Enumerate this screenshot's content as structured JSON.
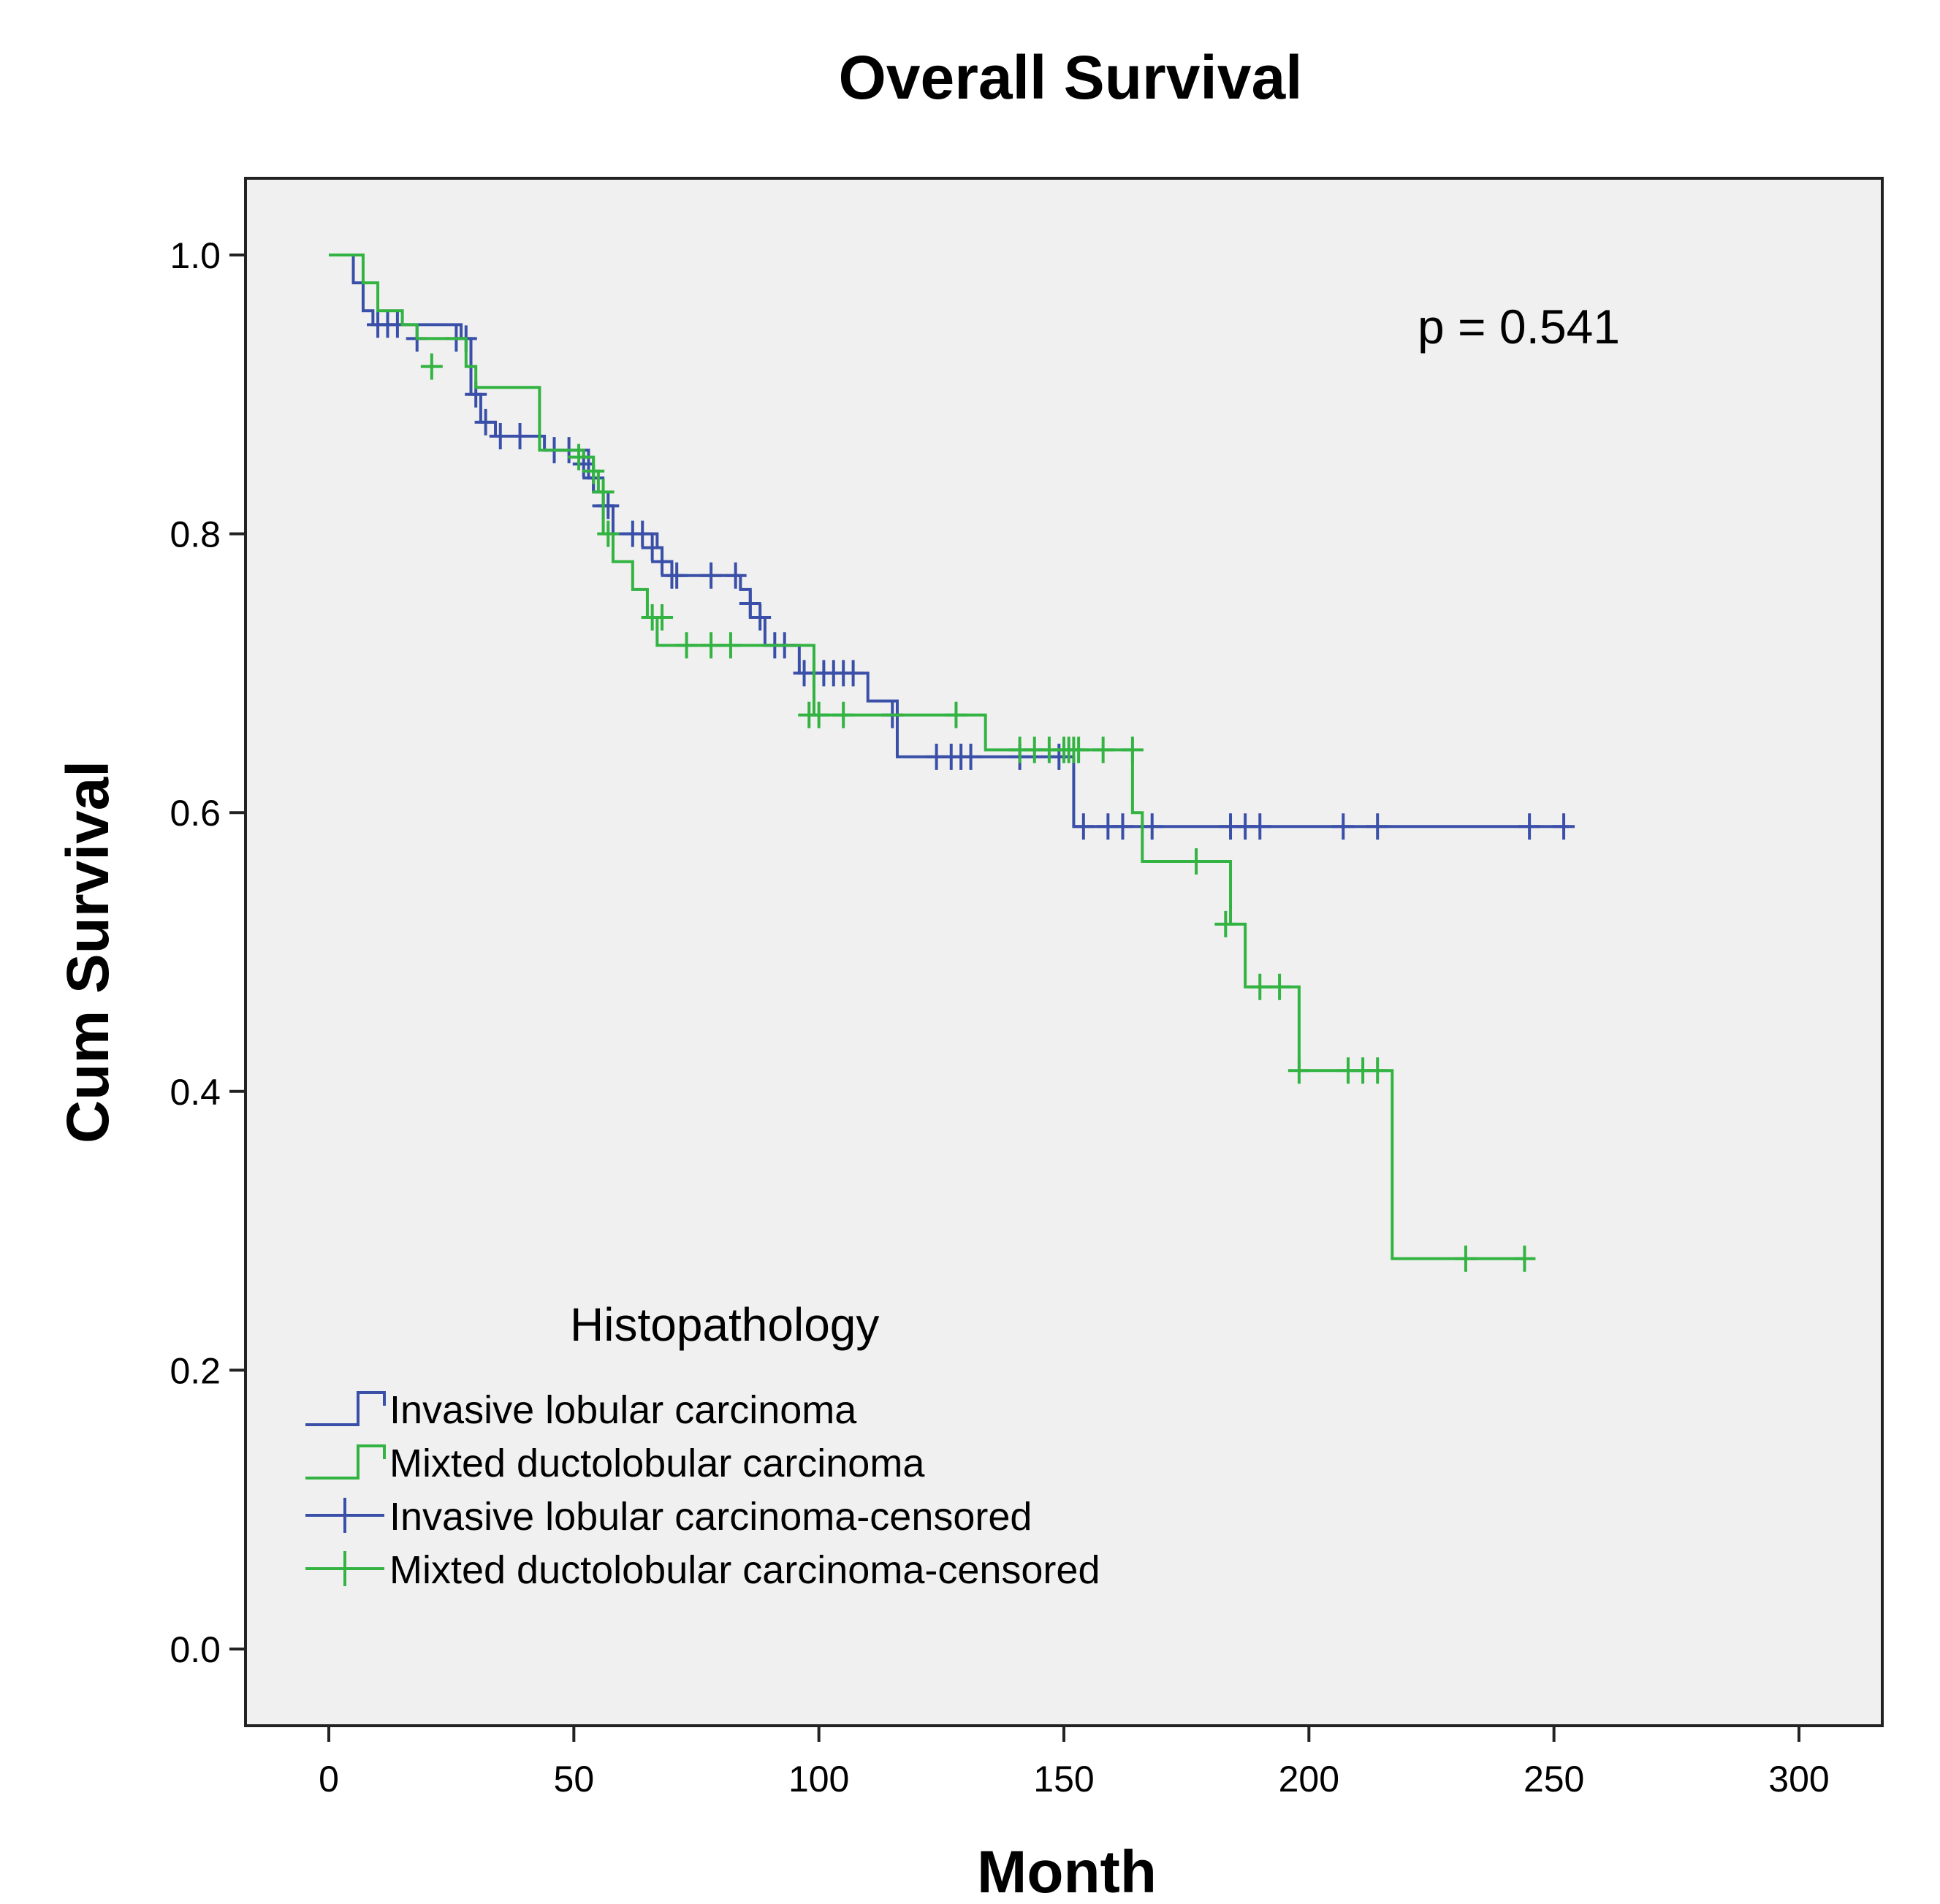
{
  "chart_data": {
    "type": "line",
    "subtype": "kaplan-meier-step",
    "title": "Overall Survival",
    "xlabel": "Month",
    "ylabel": "Cum Survival",
    "xlim": [
      -17,
      317
    ],
    "ylim": [
      -0.055,
      1.055
    ],
    "xticks": [
      0,
      50,
      100,
      150,
      200,
      250,
      300
    ],
    "xtick_labels": [
      "0",
      "50",
      "100",
      "150",
      "200",
      "250",
      "300"
    ],
    "yticks": [
      0.0,
      0.2,
      0.4,
      0.6,
      0.8,
      1.0
    ],
    "ytick_labels": [
      "0.0",
      "0.2",
      "0.4",
      "0.6",
      "0.8",
      "1.0"
    ],
    "annotation": "p = 0.541",
    "legend": {
      "title": "Histopathology",
      "position": "bottom-left",
      "entries": [
        "Invasive lobular carcinoma",
        "Mixted ductolobular carcinoma",
        "Invasive lobular carcinoma-censored",
        "Mixted ductolobular carcinoma-censored"
      ]
    },
    "series": [
      {
        "name": "Invasive lobular carcinoma",
        "color": "#3a50a8",
        "steps": [
          [
            0,
            1.0
          ],
          [
            5,
            0.98
          ],
          [
            7,
            0.96
          ],
          [
            9,
            0.95
          ],
          [
            27,
            0.94
          ],
          [
            29,
            0.9
          ],
          [
            31,
            0.88
          ],
          [
            34,
            0.87
          ],
          [
            44,
            0.86
          ],
          [
            53,
            0.84
          ],
          [
            54,
            0.83
          ],
          [
            56,
            0.82
          ],
          [
            58,
            0.8
          ],
          [
            67,
            0.79
          ],
          [
            68,
            0.78
          ],
          [
            70,
            0.77
          ],
          [
            84,
            0.76
          ],
          [
            86,
            0.74
          ],
          [
            89,
            0.72
          ],
          [
            95,
            0.72
          ],
          [
            96,
            0.7
          ],
          [
            110,
            0.68
          ],
          [
            116,
            0.64
          ],
          [
            151,
            0.64
          ],
          [
            152,
            0.59
          ],
          [
            253,
            0.59
          ]
        ],
        "censored": [
          [
            10,
            0.95
          ],
          [
            12,
            0.95
          ],
          [
            14,
            0.95
          ],
          [
            18,
            0.94
          ],
          [
            26,
            0.94
          ],
          [
            28,
            0.94
          ],
          [
            30,
            0.9
          ],
          [
            32,
            0.88
          ],
          [
            35,
            0.87
          ],
          [
            39,
            0.87
          ],
          [
            46,
            0.86
          ],
          [
            49,
            0.86
          ],
          [
            52,
            0.85
          ],
          [
            54,
            0.84
          ],
          [
            56,
            0.82
          ],
          [
            57,
            0.82
          ],
          [
            62,
            0.8
          ],
          [
            64,
            0.8
          ],
          [
            66,
            0.79
          ],
          [
            68,
            0.78
          ],
          [
            70,
            0.77
          ],
          [
            71,
            0.77
          ],
          [
            78,
            0.77
          ],
          [
            83,
            0.77
          ],
          [
            86,
            0.75
          ],
          [
            88,
            0.74
          ],
          [
            91,
            0.72
          ],
          [
            93,
            0.72
          ],
          [
            97,
            0.7
          ],
          [
            99,
            0.7
          ],
          [
            101,
            0.7
          ],
          [
            103,
            0.7
          ],
          [
            105,
            0.7
          ],
          [
            107,
            0.7
          ],
          [
            115,
            0.67
          ],
          [
            124,
            0.64
          ],
          [
            127,
            0.64
          ],
          [
            129,
            0.64
          ],
          [
            131,
            0.64
          ],
          [
            141,
            0.64
          ],
          [
            149,
            0.64
          ],
          [
            154,
            0.59
          ],
          [
            159,
            0.59
          ],
          [
            162,
            0.59
          ],
          [
            168,
            0.59
          ],
          [
            184,
            0.59
          ],
          [
            187,
            0.59
          ],
          [
            190,
            0.59
          ],
          [
            207,
            0.59
          ],
          [
            214,
            0.59
          ],
          [
            245,
            0.59
          ],
          [
            252,
            0.59
          ]
        ]
      },
      {
        "name": "Mixted ductolobular carcinoma",
        "color": "#33b342",
        "steps": [
          [
            0,
            1.0
          ],
          [
            7,
            0.98
          ],
          [
            10,
            0.96
          ],
          [
            15,
            0.95
          ],
          [
            18,
            0.94
          ],
          [
            28,
            0.92
          ],
          [
            30,
            0.905
          ],
          [
            43,
            0.86
          ],
          [
            52,
            0.855
          ],
          [
            54,
            0.845
          ],
          [
            55,
            0.83
          ],
          [
            56,
            0.8
          ],
          [
            58,
            0.78
          ],
          [
            62,
            0.76
          ],
          [
            65,
            0.74
          ],
          [
            67,
            0.72
          ],
          [
            99,
            0.67
          ],
          [
            134,
            0.645
          ],
          [
            164,
            0.6
          ],
          [
            166,
            0.565
          ],
          [
            184,
            0.52
          ],
          [
            187,
            0.475
          ],
          [
            198,
            0.415
          ],
          [
            217,
            0.28
          ],
          [
            244,
            0.28
          ]
        ],
        "censored": [
          [
            21,
            0.92
          ],
          [
            51,
            0.855
          ],
          [
            54,
            0.845
          ],
          [
            56,
            0.83
          ],
          [
            57,
            0.8
          ],
          [
            66,
            0.74
          ],
          [
            68,
            0.74
          ],
          [
            73,
            0.72
          ],
          [
            78,
            0.72
          ],
          [
            82,
            0.72
          ],
          [
            98,
            0.67
          ],
          [
            100,
            0.67
          ],
          [
            105,
            0.67
          ],
          [
            128,
            0.67
          ],
          [
            141,
            0.645
          ],
          [
            144,
            0.645
          ],
          [
            147,
            0.645
          ],
          [
            150,
            0.645
          ],
          [
            151,
            0.645
          ],
          [
            152,
            0.645
          ],
          [
            153,
            0.645
          ],
          [
            158,
            0.645
          ],
          [
            164,
            0.645
          ],
          [
            177,
            0.565
          ],
          [
            183,
            0.52
          ],
          [
            190,
            0.475
          ],
          [
            194,
            0.475
          ],
          [
            198,
            0.415
          ],
          [
            208,
            0.415
          ],
          [
            211,
            0.415
          ],
          [
            214,
            0.415
          ],
          [
            232,
            0.28
          ],
          [
            244,
            0.28
          ]
        ]
      }
    ]
  }
}
